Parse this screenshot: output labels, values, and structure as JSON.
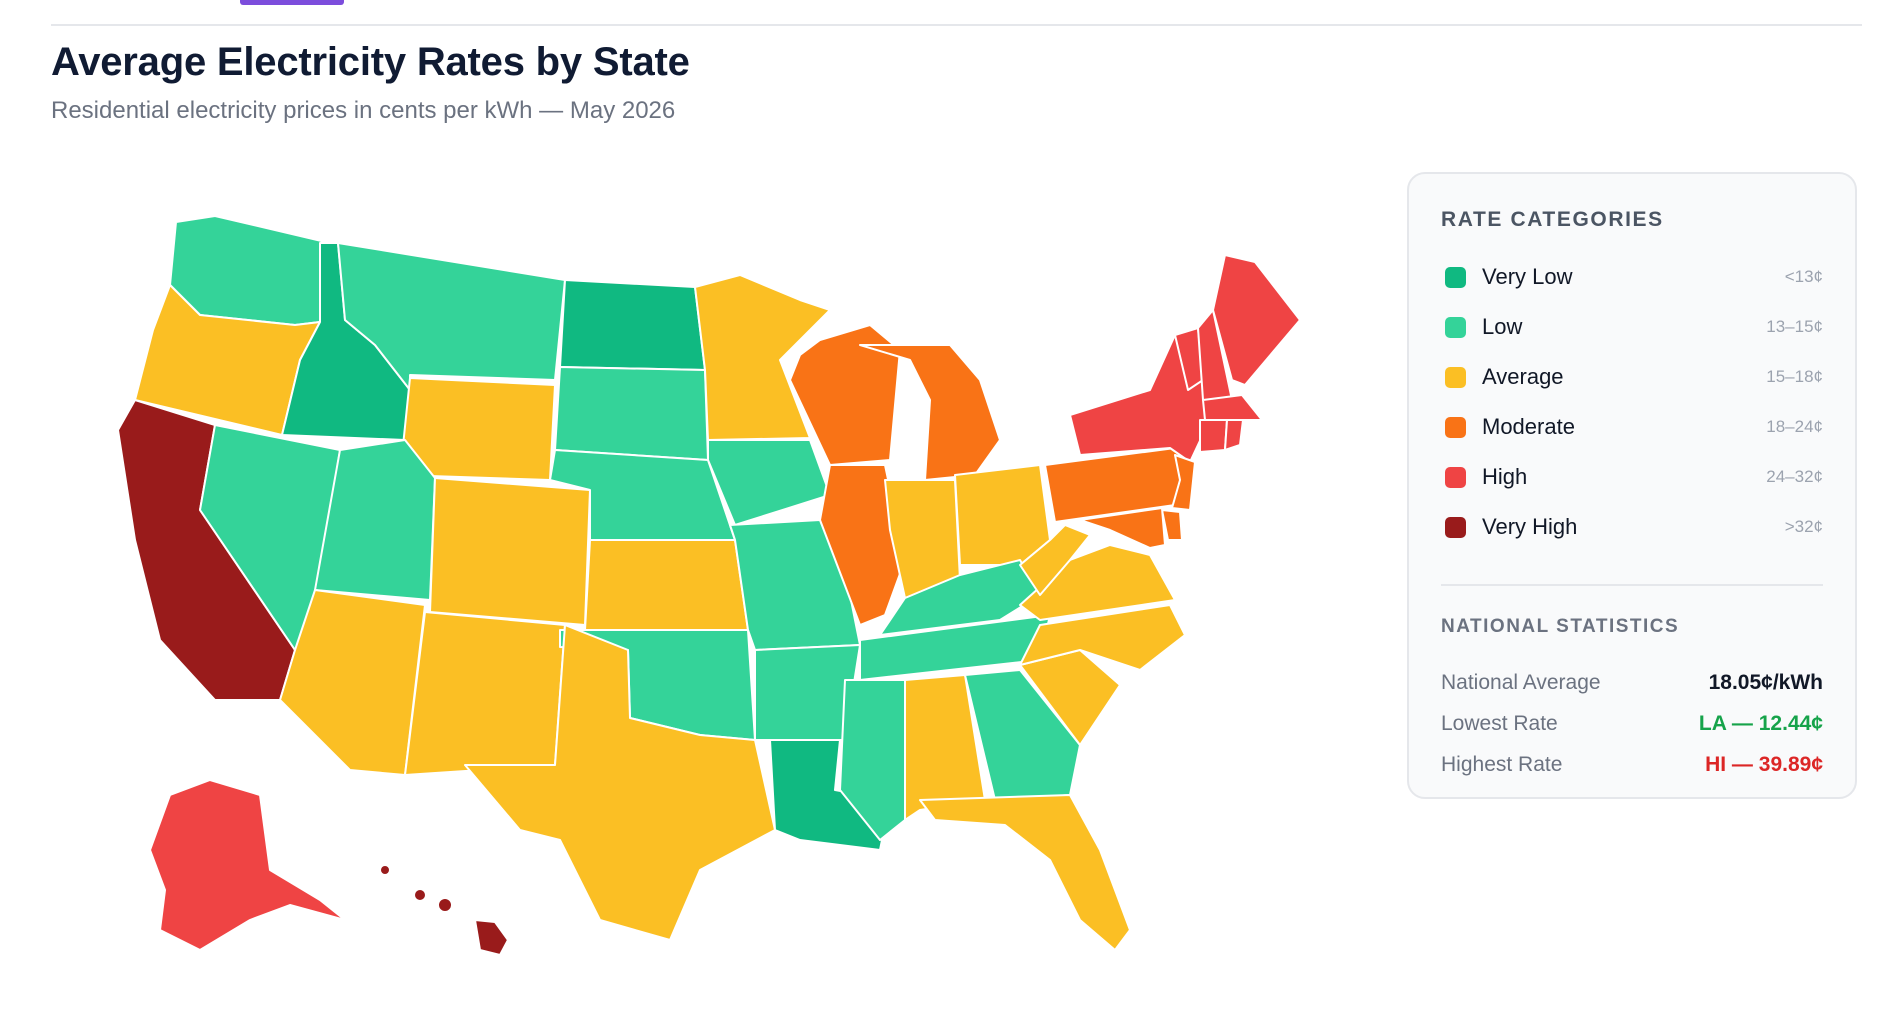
{
  "header": {
    "title": "Average Electricity Rates by State",
    "subtitle": "Residential electricity prices in cents per kWh — May 2026"
  },
  "colors": {
    "very_low": "#10b981",
    "low": "#34d399",
    "average": "#fbbf24",
    "moderate": "#f97316",
    "high": "#ef4444",
    "very_high": "#991b1b",
    "accent": "#7c4ddc"
  },
  "legend": {
    "title": "RATE CATEGORIES",
    "items": [
      {
        "label": "Very Low",
        "range": "<13¢",
        "color": "#10b981"
      },
      {
        "label": "Low",
        "range": "13–15¢",
        "color": "#34d399"
      },
      {
        "label": "Average",
        "range": "15–18¢",
        "color": "#fbbf24"
      },
      {
        "label": "Moderate",
        "range": "18–24¢",
        "color": "#f97316"
      },
      {
        "label": "High",
        "range": "24–32¢",
        "color": "#ef4444"
      },
      {
        "label": "Very High",
        "range": ">32¢",
        "color": "#991b1b"
      }
    ]
  },
  "stats": {
    "title": "NATIONAL STATISTICS",
    "national_average_label": "National Average",
    "national_average_value": "18.05¢/kWh",
    "lowest_label": "Lowest Rate",
    "lowest_value": "LA — 12.44¢",
    "highest_label": "Highest Rate",
    "highest_value": "HI — 39.89¢"
  },
  "states": {
    "WA": "low",
    "OR": "average",
    "CA": "very_high",
    "ID": "very_low",
    "NV": "low",
    "MT": "low",
    "WY": "average",
    "UT": "low",
    "AZ": "average",
    "CO": "average",
    "NM": "average",
    "ND": "very_low",
    "SD": "low",
    "NE": "low",
    "KS": "average",
    "OK": "low",
    "TX": "average",
    "MN": "average",
    "IA": "low",
    "MO": "low",
    "AR": "low",
    "LA": "very_low",
    "WI": "moderate",
    "IL": "moderate",
    "MI": "moderate",
    "IN": "average",
    "OH": "average",
    "KY": "low",
    "TN": "low",
    "MS": "low",
    "AL": "average",
    "GA": "low",
    "FL": "average",
    "SC": "average",
    "NC": "average",
    "VA": "average",
    "WV": "average",
    "PA": "moderate",
    "NY": "high",
    "VT": "high",
    "NH": "high",
    "ME": "high",
    "MA": "high",
    "CT": "high",
    "RI": "high",
    "NJ": "moderate",
    "DE": "moderate",
    "MD": "moderate",
    "AK": "high",
    "HI": "very_high"
  }
}
